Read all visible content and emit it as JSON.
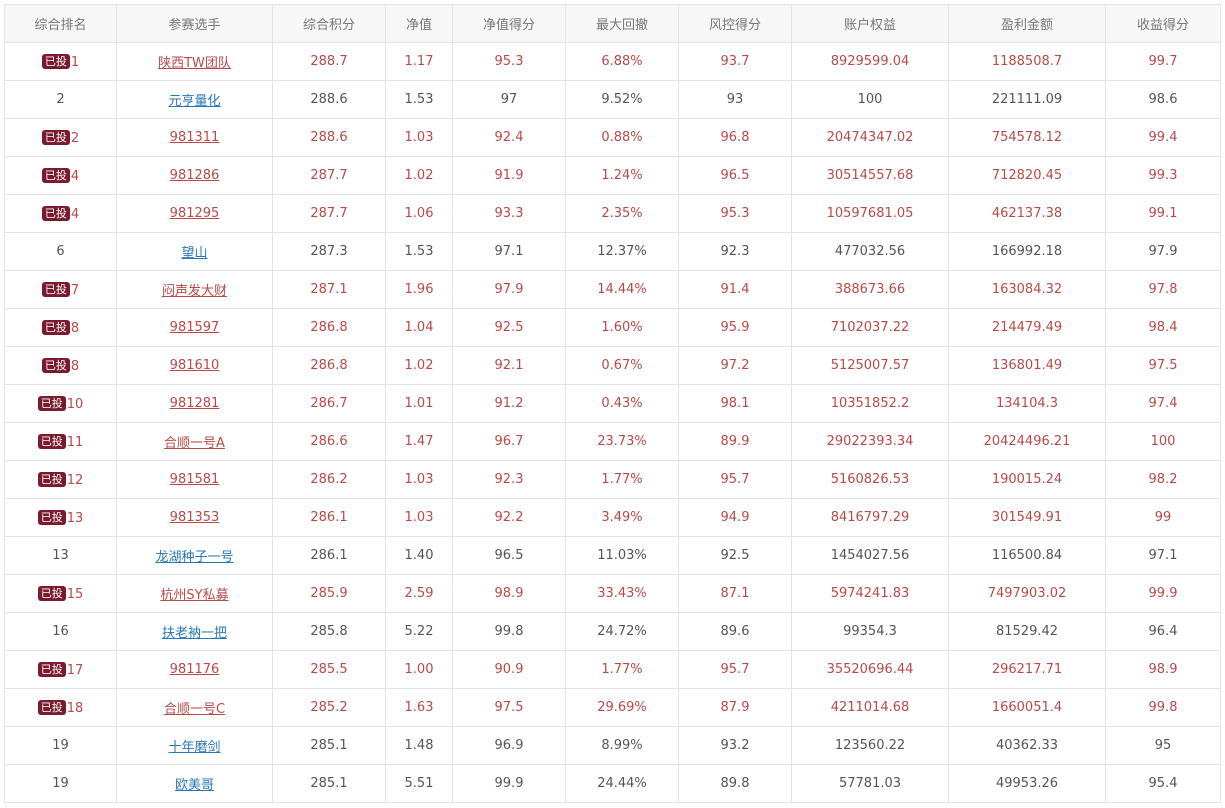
{
  "columns": [
    "综合排名",
    "参赛选手",
    "综合积分",
    "净值",
    "净值得分",
    "最大回撤",
    "风控得分",
    "账户权益",
    "盈利金额",
    "收益得分"
  ],
  "badge_label": "已投",
  "colors": {
    "invested_text": "#b94a48",
    "badge_bg": "#7a1a2e",
    "link_blue": "#2a78b8",
    "normal_text": "#555555"
  },
  "rows": [
    {
      "invested": true,
      "rank": "1",
      "player": "陕西TW团队",
      "score": "288.7",
      "nav": "1.17",
      "nav_score": "95.3",
      "max_drawdown": "6.88%",
      "risk_score": "93.7",
      "equity": "8929599.04",
      "profit": "1188508.7",
      "return_score": "99.7"
    },
    {
      "invested": false,
      "rank": "2",
      "player": "元亨量化",
      "score": "288.6",
      "nav": "1.53",
      "nav_score": "97",
      "max_drawdown": "9.52%",
      "risk_score": "93",
      "equity": "100",
      "profit": "221111.09",
      "return_score": "98.6"
    },
    {
      "invested": true,
      "rank": "2",
      "player": "981311",
      "score": "288.6",
      "nav": "1.03",
      "nav_score": "92.4",
      "max_drawdown": "0.88%",
      "risk_score": "96.8",
      "equity": "20474347.02",
      "profit": "754578.12",
      "return_score": "99.4"
    },
    {
      "invested": true,
      "rank": "4",
      "player": "981286",
      "score": "287.7",
      "nav": "1.02",
      "nav_score": "91.9",
      "max_drawdown": "1.24%",
      "risk_score": "96.5",
      "equity": "30514557.68",
      "profit": "712820.45",
      "return_score": "99.3"
    },
    {
      "invested": true,
      "rank": "4",
      "player": "981295",
      "score": "287.7",
      "nav": "1.06",
      "nav_score": "93.3",
      "max_drawdown": "2.35%",
      "risk_score": "95.3",
      "equity": "10597681.05",
      "profit": "462137.38",
      "return_score": "99.1"
    },
    {
      "invested": false,
      "rank": "6",
      "player": "望山",
      "score": "287.3",
      "nav": "1.53",
      "nav_score": "97.1",
      "max_drawdown": "12.37%",
      "risk_score": "92.3",
      "equity": "477032.56",
      "profit": "166992.18",
      "return_score": "97.9"
    },
    {
      "invested": true,
      "rank": "7",
      "player": "闷声发大财",
      "score": "287.1",
      "nav": "1.96",
      "nav_score": "97.9",
      "max_drawdown": "14.44%",
      "risk_score": "91.4",
      "equity": "388673.66",
      "profit": "163084.32",
      "return_score": "97.8"
    },
    {
      "invested": true,
      "rank": "8",
      "player": "981597",
      "score": "286.8",
      "nav": "1.04",
      "nav_score": "92.5",
      "max_drawdown": "1.60%",
      "risk_score": "95.9",
      "equity": "7102037.22",
      "profit": "214479.49",
      "return_score": "98.4"
    },
    {
      "invested": true,
      "rank": "8",
      "player": "981610",
      "score": "286.8",
      "nav": "1.02",
      "nav_score": "92.1",
      "max_drawdown": "0.67%",
      "risk_score": "97.2",
      "equity": "5125007.57",
      "profit": "136801.49",
      "return_score": "97.5"
    },
    {
      "invested": true,
      "rank": "10",
      "player": "981281",
      "score": "286.7",
      "nav": "1.01",
      "nav_score": "91.2",
      "max_drawdown": "0.43%",
      "risk_score": "98.1",
      "equity": "10351852.2",
      "profit": "134104.3",
      "return_score": "97.4"
    },
    {
      "invested": true,
      "rank": "11",
      "player": "合顺一号A",
      "score": "286.6",
      "nav": "1.47",
      "nav_score": "96.7",
      "max_drawdown": "23.73%",
      "risk_score": "89.9",
      "equity": "29022393.34",
      "profit": "20424496.21",
      "return_score": "100"
    },
    {
      "invested": true,
      "rank": "12",
      "player": "981581",
      "score": "286.2",
      "nav": "1.03",
      "nav_score": "92.3",
      "max_drawdown": "1.77%",
      "risk_score": "95.7",
      "equity": "5160826.53",
      "profit": "190015.24",
      "return_score": "98.2"
    },
    {
      "invested": true,
      "rank": "13",
      "player": "981353",
      "score": "286.1",
      "nav": "1.03",
      "nav_score": "92.2",
      "max_drawdown": "3.49%",
      "risk_score": "94.9",
      "equity": "8416797.29",
      "profit": "301549.91",
      "return_score": "99"
    },
    {
      "invested": false,
      "rank": "13",
      "player": "龙湖种子一号",
      "score": "286.1",
      "nav": "1.40",
      "nav_score": "96.5",
      "max_drawdown": "11.03%",
      "risk_score": "92.5",
      "equity": "1454027.56",
      "profit": "116500.84",
      "return_score": "97.1"
    },
    {
      "invested": true,
      "rank": "15",
      "player": "杭州SY私募",
      "score": "285.9",
      "nav": "2.59",
      "nav_score": "98.9",
      "max_drawdown": "33.43%",
      "risk_score": "87.1",
      "equity": "5974241.83",
      "profit": "7497903.02",
      "return_score": "99.9"
    },
    {
      "invested": false,
      "rank": "16",
      "player": "扶老衲一把",
      "score": "285.8",
      "nav": "5.22",
      "nav_score": "99.8",
      "max_drawdown": "24.72%",
      "risk_score": "89.6",
      "equity": "99354.3",
      "profit": "81529.42",
      "return_score": "96.4"
    },
    {
      "invested": true,
      "rank": "17",
      "player": "981176",
      "score": "285.5",
      "nav": "1.00",
      "nav_score": "90.9",
      "max_drawdown": "1.77%",
      "risk_score": "95.7",
      "equity": "35520696.44",
      "profit": "296217.71",
      "return_score": "98.9"
    },
    {
      "invested": true,
      "rank": "18",
      "player": "合顺一号C",
      "score": "285.2",
      "nav": "1.63",
      "nav_score": "97.5",
      "max_drawdown": "29.69%",
      "risk_score": "87.9",
      "equity": "4211014.68",
      "profit": "1660051.4",
      "return_score": "99.8"
    },
    {
      "invested": false,
      "rank": "19",
      "player": "十年磨剑",
      "score": "285.1",
      "nav": "1.48",
      "nav_score": "96.9",
      "max_drawdown": "8.99%",
      "risk_score": "93.2",
      "equity": "123560.22",
      "profit": "40362.33",
      "return_score": "95"
    },
    {
      "invested": false,
      "rank": "19",
      "player": "欧美哥",
      "score": "285.1",
      "nav": "5.51",
      "nav_score": "99.9",
      "max_drawdown": "24.44%",
      "risk_score": "89.8",
      "equity": "57781.03",
      "profit": "49953.26",
      "return_score": "95.4"
    }
  ]
}
